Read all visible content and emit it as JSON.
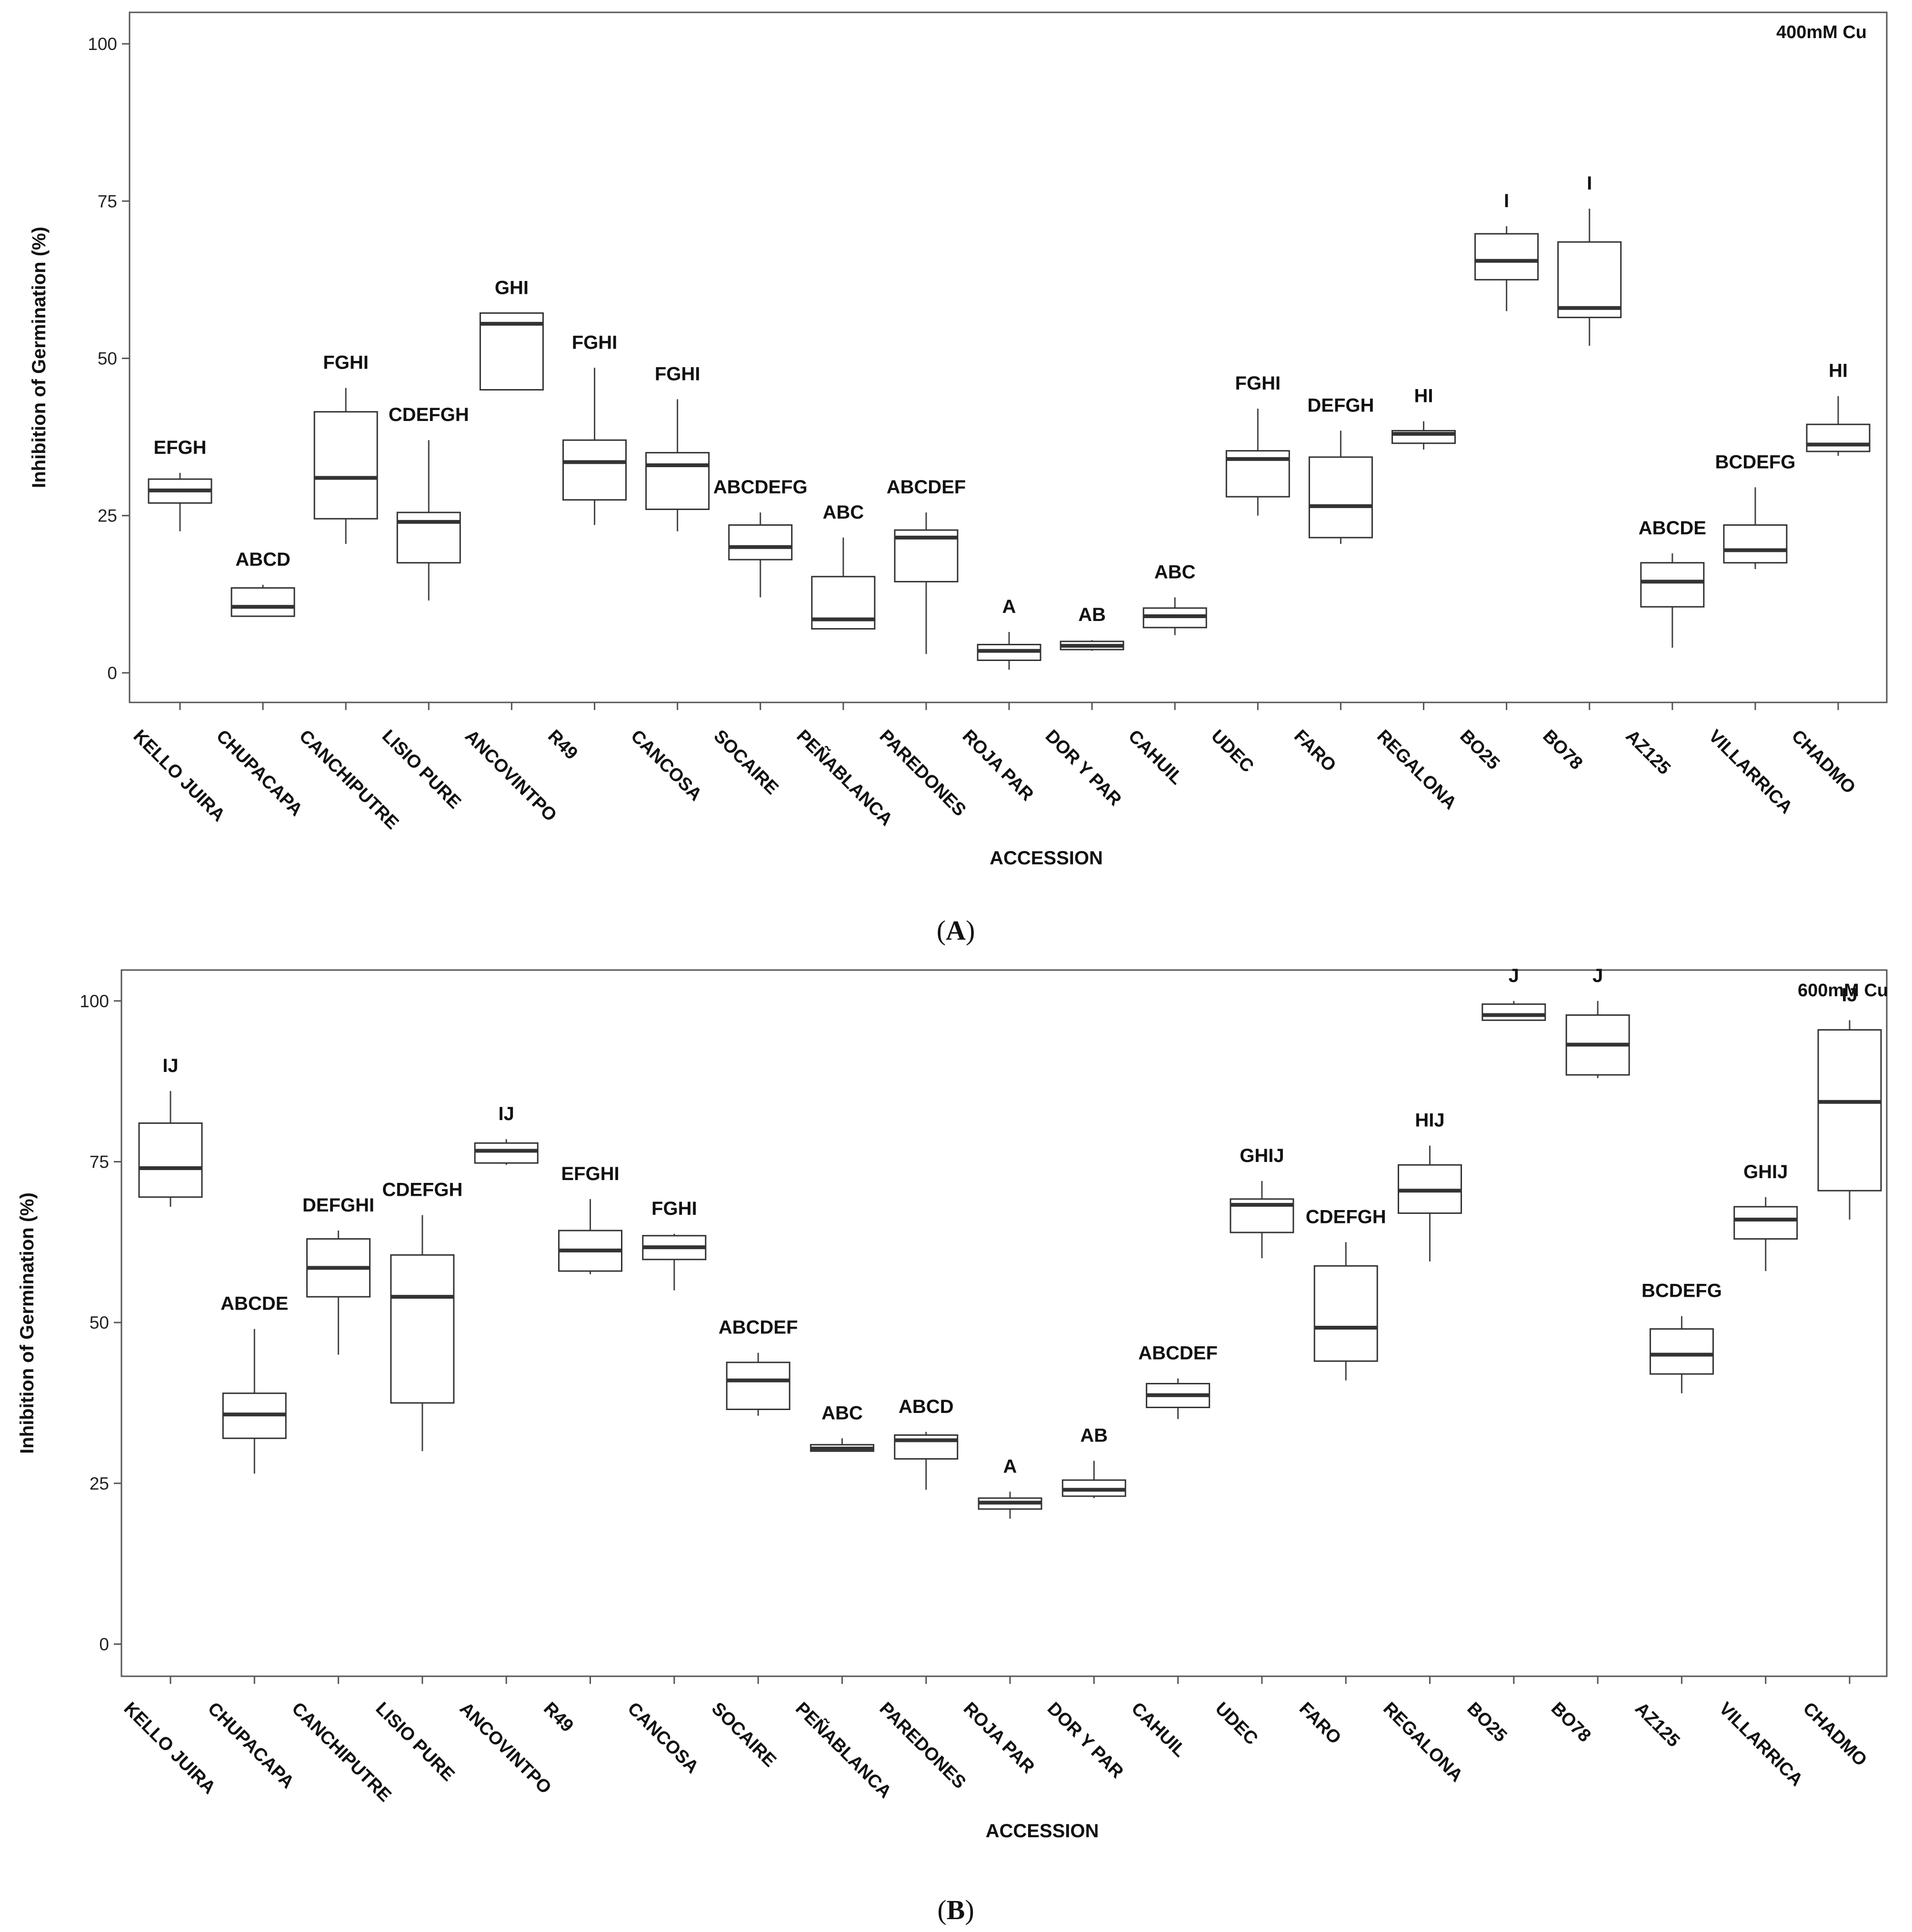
{
  "chart_data": [
    {
      "type": "box",
      "panel": "A",
      "corner_label": "400mM Cu",
      "xlabel": "ACCESSION",
      "ylabel": "Inhibition of Germination (%)",
      "ylim": [
        -4.7,
        105
      ],
      "yticks": [
        0,
        25,
        50,
        75,
        100
      ],
      "categories": [
        "KELLO JUIRA",
        "CHUPACAPA",
        "CANCHIPUTRE",
        "LISIO PURE",
        "ANCOVINTPO",
        "R49",
        "CANCOSA",
        "SOCAIRE",
        "PEÑABLANCA",
        "PAREDONES",
        "ROJA PAR",
        "DOR Y PAR",
        "CAHUIL",
        "UDEC",
        "FARO",
        "REGALONA",
        "BO25",
        "BO78",
        "AZ125",
        "VILLARRICA",
        "CHADMO"
      ],
      "groups": [
        "EFGH",
        "ABCD",
        "FGHI",
        "CDEFGH",
        "GHI",
        "FGHI",
        "FGHI",
        "ABCDEFG",
        "ABC",
        "ABCDEF",
        "A",
        "AB",
        "ABC",
        "FGHI",
        "DEFGH",
        "HI",
        "I",
        "I",
        "ABCDE",
        "BCDEFG",
        "HI"
      ],
      "boxes": [
        {
          "min": 22.5,
          "q1": 27,
          "median": 29,
          "q3": 30.8,
          "max": 31.8
        },
        {
          "min": 9,
          "q1": 9,
          "median": 10.5,
          "q3": 13.5,
          "max": 14
        },
        {
          "min": 20.5,
          "q1": 24.5,
          "median": 31,
          "q3": 41.5,
          "max": 45.3
        },
        {
          "min": 11.5,
          "q1": 17.5,
          "median": 24,
          "q3": 25.5,
          "max": 37
        },
        {
          "min": 45,
          "q1": 45,
          "median": 55.5,
          "q3": 57.2,
          "max": 57.2
        },
        {
          "min": 23.5,
          "q1": 27.5,
          "median": 33.5,
          "q3": 37,
          "max": 48.5
        },
        {
          "min": 22.5,
          "q1": 26,
          "median": 33,
          "q3": 35,
          "max": 43.5
        },
        {
          "min": 12,
          "q1": 18,
          "median": 20,
          "q3": 23.5,
          "max": 25.5
        },
        {
          "min": 7,
          "q1": 7,
          "median": 8.5,
          "q3": 15.3,
          "max": 21.5
        },
        {
          "min": 3,
          "q1": 14.5,
          "median": 21.5,
          "q3": 22.7,
          "max": 25.5
        },
        {
          "min": 0.5,
          "q1": 2,
          "median": 3.5,
          "q3": 4.5,
          "max": 6.5
        },
        {
          "min": 3.5,
          "q1": 3.7,
          "median": 4.3,
          "q3": 5,
          "max": 5.2
        },
        {
          "min": 6,
          "q1": 7.2,
          "median": 9,
          "q3": 10.3,
          "max": 12
        },
        {
          "min": 25,
          "q1": 28,
          "median": 34,
          "q3": 35.3,
          "max": 42
        },
        {
          "min": 20.5,
          "q1": 21.5,
          "median": 26.5,
          "q3": 34.3,
          "max": 38.5
        },
        {
          "min": 35.5,
          "q1": 36.5,
          "median": 38,
          "q3": 38.5,
          "max": 40
        },
        {
          "min": 57.5,
          "q1": 62.5,
          "median": 65.5,
          "q3": 69.8,
          "max": 71
        },
        {
          "min": 52,
          "q1": 56.5,
          "median": 58,
          "q3": 68.5,
          "max": 73.8
        },
        {
          "min": 4,
          "q1": 10.5,
          "median": 14.5,
          "q3": 17.5,
          "max": 19
        },
        {
          "min": 16.5,
          "q1": 17.5,
          "median": 19.5,
          "q3": 23.5,
          "max": 29.5
        },
        {
          "min": 34.5,
          "q1": 35.2,
          "median": 36.3,
          "q3": 39.5,
          "max": 44
        }
      ]
    },
    {
      "type": "box",
      "panel": "B",
      "corner_label": "600mM Cu",
      "xlabel": "ACCESSION",
      "ylabel": "Inhibition of Germination (%)",
      "ylim": [
        -5,
        104.8
      ],
      "yticks": [
        0,
        25,
        50,
        75,
        100
      ],
      "categories": [
        "KELLO JUIRA",
        "CHUPACAPA",
        "CANCHIPUTRE",
        "LISIO PURE",
        "ANCOVINTPO",
        "R49",
        "CANCOSA",
        "SOCAIRE",
        "PEÑABLANCA",
        "PAREDONES",
        "ROJA PAR",
        "DOR Y PAR",
        "CAHUIL",
        "UDEC",
        "FARO",
        "REGALONA",
        "BO25",
        "BO78",
        "AZ125",
        "VILLARRICA",
        "CHADMO"
      ],
      "groups": [
        "IJ",
        "ABCDE",
        "DEFGHI",
        "CDEFGH",
        "IJ",
        "EFGHI",
        "FGHI",
        "ABCDEF",
        "ABC",
        "ABCD",
        "A",
        "AB",
        "ABCDEF",
        "GHIJ",
        "CDEFGH",
        "HIJ",
        "J",
        "J",
        "BCDEFG",
        "GHIJ",
        "IJ"
      ],
      "boxes": [
        {
          "min": 68,
          "q1": 69.5,
          "median": 74,
          "q3": 81,
          "max": 86
        },
        {
          "min": 26.5,
          "q1": 32,
          "median": 35.7,
          "q3": 39,
          "max": 49
        },
        {
          "min": 45,
          "q1": 54,
          "median": 58.5,
          "q3": 63,
          "max": 64.3
        },
        {
          "min": 30,
          "q1": 37.5,
          "median": 54,
          "q3": 60.5,
          "max": 66.7
        },
        {
          "min": 74.5,
          "q1": 74.8,
          "median": 76.7,
          "q3": 77.9,
          "max": 78.5
        },
        {
          "min": 57.5,
          "q1": 58,
          "median": 61.2,
          "q3": 64.3,
          "max": 69.2
        },
        {
          "min": 55,
          "q1": 59.8,
          "median": 61.7,
          "q3": 63.5,
          "max": 63.8
        },
        {
          "min": 35.5,
          "q1": 36.5,
          "median": 41,
          "q3": 43.8,
          "max": 45.3
        },
        {
          "min": 30,
          "q1": 30,
          "median": 30.4,
          "q3": 31,
          "max": 32
        },
        {
          "min": 24,
          "q1": 28.8,
          "median": 31.7,
          "q3": 32.5,
          "max": 33
        },
        {
          "min": 19.5,
          "q1": 21,
          "median": 22,
          "q3": 22.7,
          "max": 23.7
        },
        {
          "min": 22.7,
          "q1": 23,
          "median": 24,
          "q3": 25.5,
          "max": 28.5
        },
        {
          "min": 35,
          "q1": 36.8,
          "median": 38.7,
          "q3": 40.5,
          "max": 41.3
        },
        {
          "min": 60,
          "q1": 64,
          "median": 68.3,
          "q3": 69.2,
          "max": 72
        },
        {
          "min": 41,
          "q1": 44,
          "median": 49.2,
          "q3": 58.8,
          "max": 62.5
        },
        {
          "min": 59.5,
          "q1": 67,
          "median": 70.5,
          "q3": 74.5,
          "max": 77.5
        },
        {
          "min": 97,
          "q1": 97,
          "median": 97.8,
          "q3": 99.5,
          "max": 100
        },
        {
          "min": 88,
          "q1": 88.5,
          "median": 93.2,
          "q3": 97.8,
          "max": 100
        },
        {
          "min": 39,
          "q1": 42,
          "median": 45,
          "q3": 49,
          "max": 51
        },
        {
          "min": 58,
          "q1": 63,
          "median": 66,
          "q3": 68,
          "max": 69.5
        },
        {
          "min": 66,
          "q1": 70.5,
          "median": 84.3,
          "q3": 95.5,
          "max": 97
        }
      ]
    }
  ],
  "panel_labels": [
    "(A)",
    "(B)"
  ]
}
